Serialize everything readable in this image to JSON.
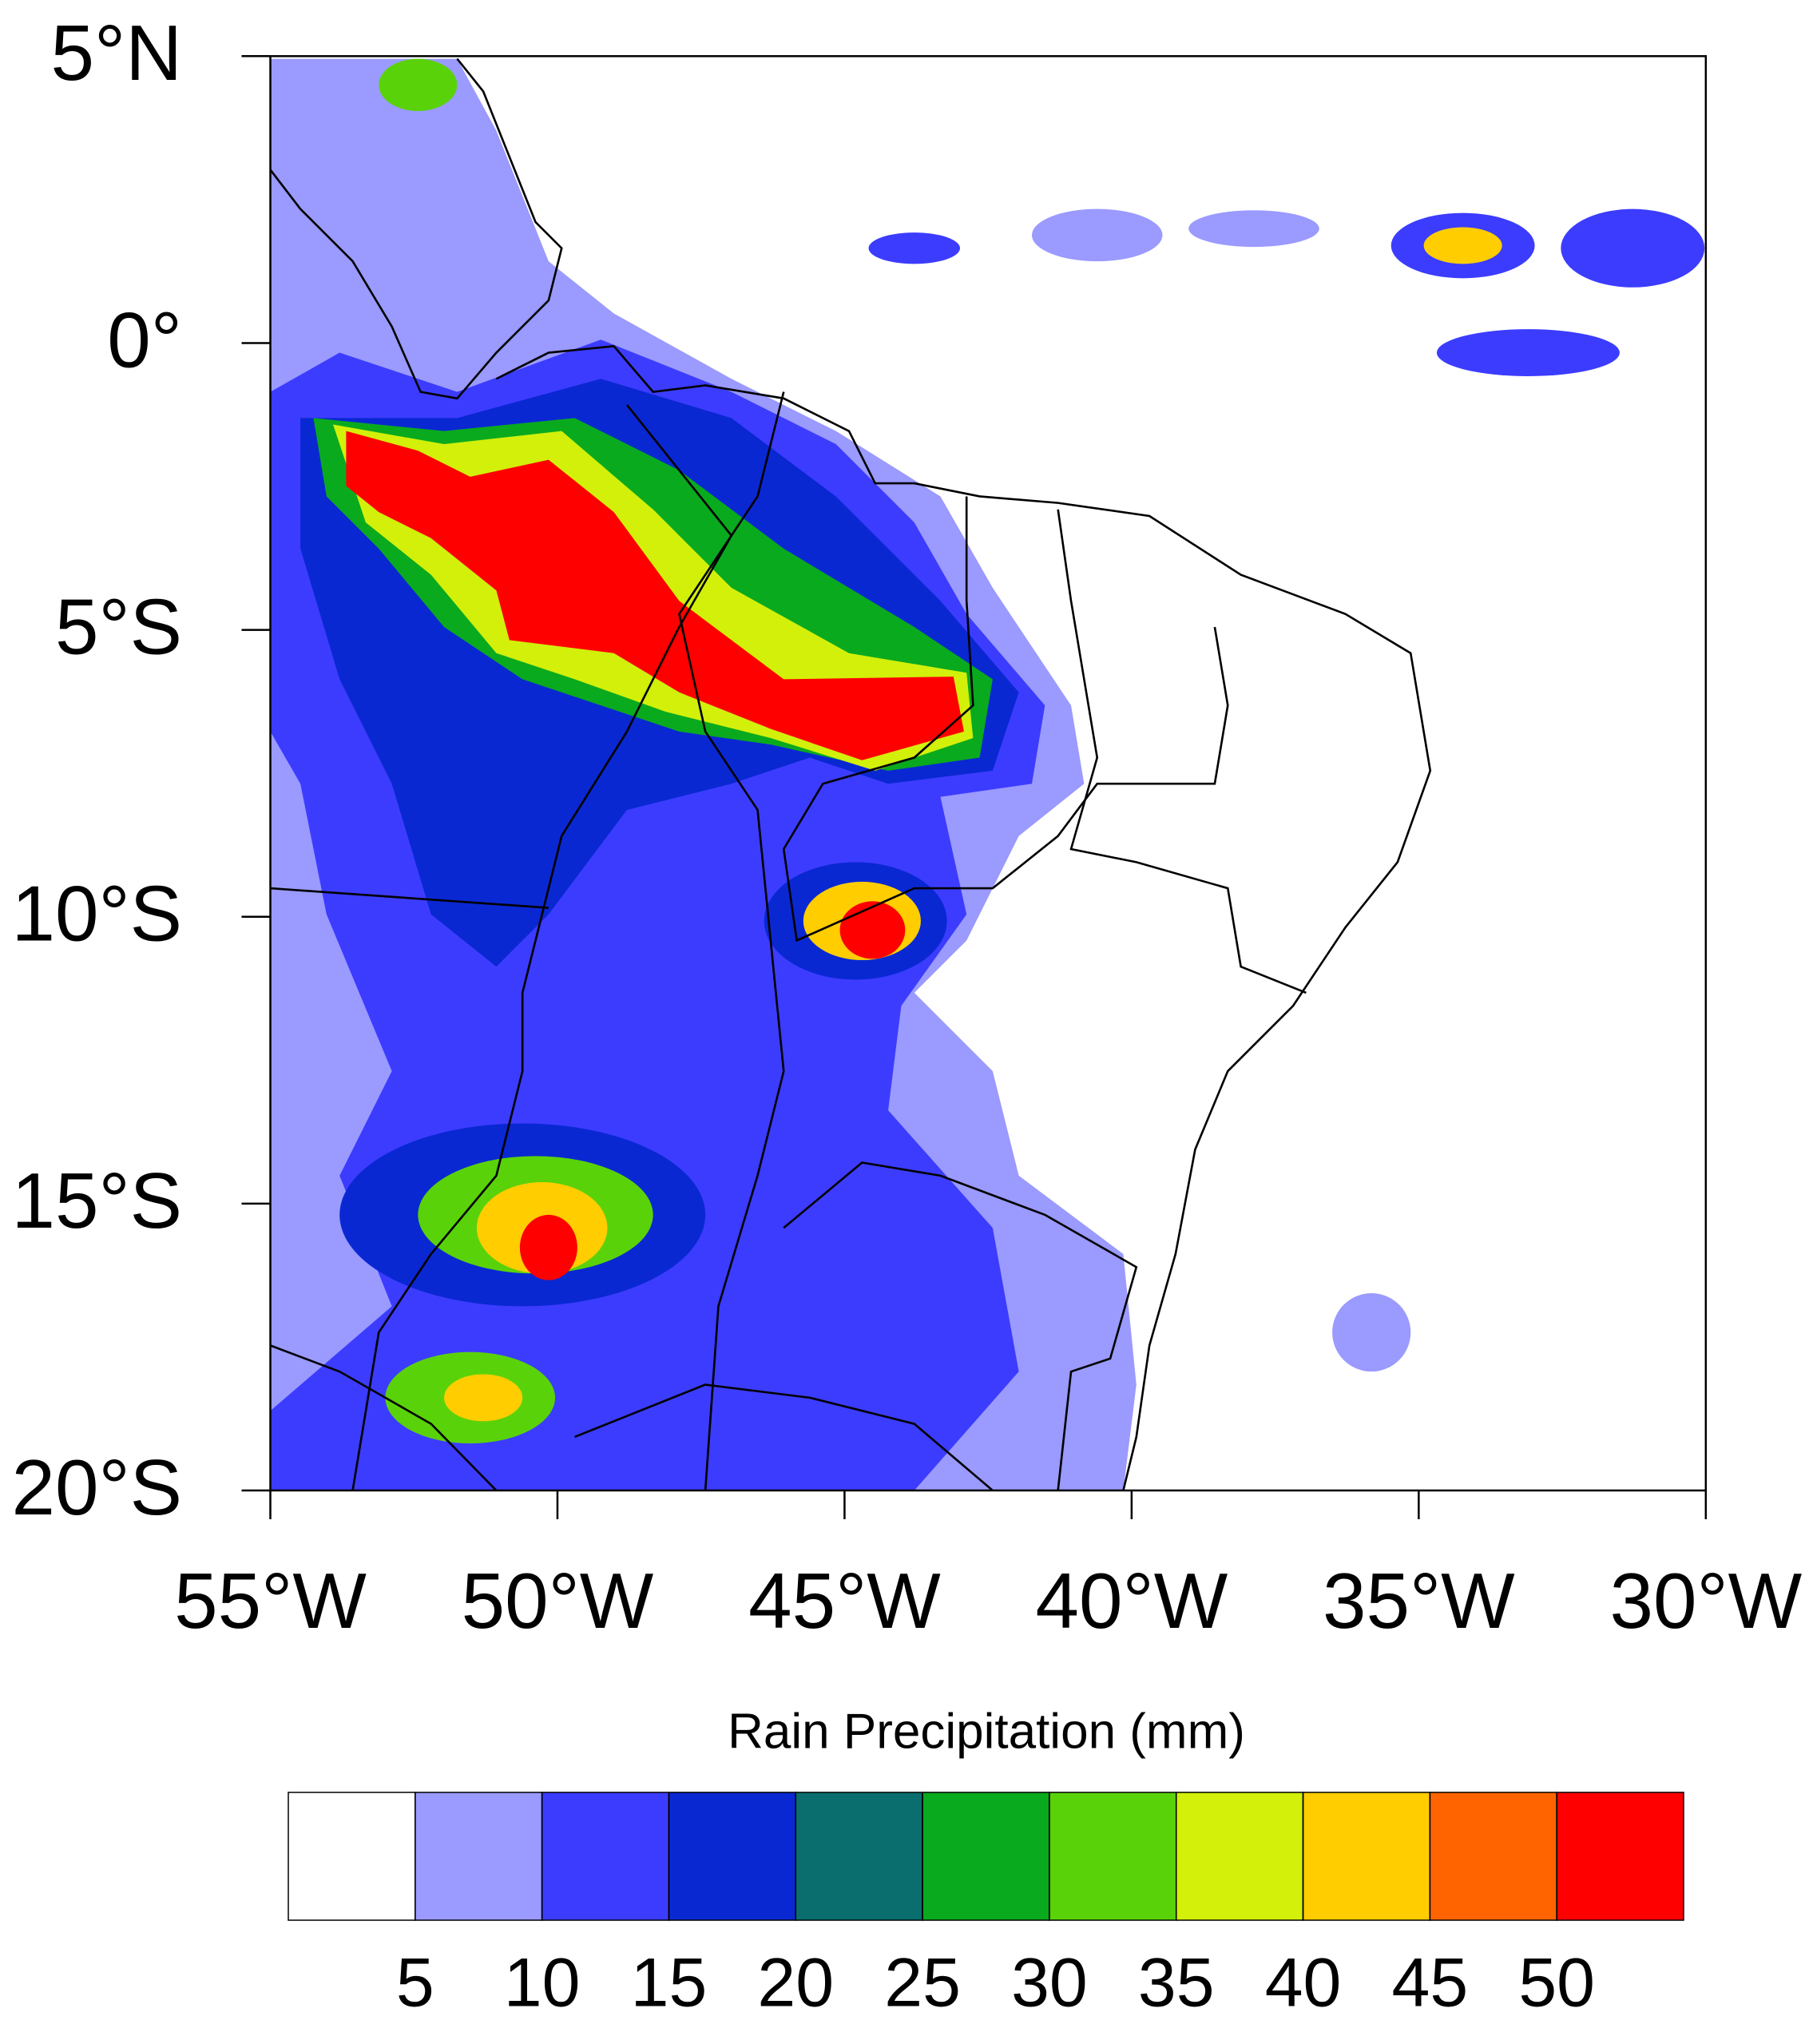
{
  "map": {
    "xaxis": {
      "lim": [
        -55,
        -30
      ],
      "ticks": [
        {
          "value": -55,
          "label": "55°W"
        },
        {
          "value": -50,
          "label": "50°W"
        },
        {
          "value": -45,
          "label": "45°W"
        },
        {
          "value": -40,
          "label": "40°W"
        },
        {
          "value": -35,
          "label": "35°W"
        },
        {
          "value": -30,
          "label": "30°W"
        }
      ]
    },
    "yaxis": {
      "lim": [
        -20,
        5
      ],
      "ticks": [
        {
          "value": 5,
          "label": "5°N"
        },
        {
          "value": 0,
          "label": "0°"
        },
        {
          "value": -5,
          "label": "5°S"
        },
        {
          "value": -10,
          "label": "10°S"
        },
        {
          "value": -15,
          "label": "15°S"
        },
        {
          "value": -20,
          "label": "20°S"
        }
      ]
    },
    "colorbar": {
      "title": "Rain Precipitation (mm)",
      "levels": [
        5,
        10,
        15,
        20,
        25,
        30,
        35,
        40,
        45,
        50
      ],
      "colors": [
        "#ffffff",
        "#9a9aff",
        "#3c3cff",
        "#0a28d2",
        "#0a6e6e",
        "#0aaa1e",
        "#5ad20a",
        "#d2f00a",
        "#ffcd00",
        "#ff6400",
        "#ff0000"
      ]
    }
  }
}
